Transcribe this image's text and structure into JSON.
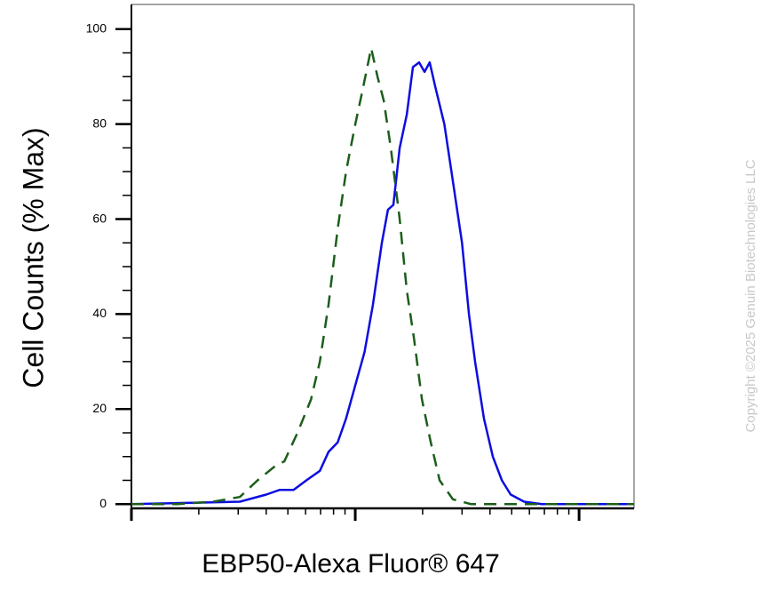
{
  "chart_data": {
    "type": "line",
    "xlabel": "EBP50-Alexa Fluor® 647",
    "ylabel": "Cell Counts (% Max)",
    "copyright": "Copyright ©2025 Genuin Biotechnologies LLC",
    "xscale": "log",
    "xlim": [
      100,
      17600
    ],
    "xticks": [
      100,
      1000,
      10000
    ],
    "xminorticks": [
      200,
      300,
      400,
      500,
      600,
      700,
      800,
      900,
      2000,
      3000,
      4000,
      5000,
      6000,
      7000,
      8000,
      9000
    ],
    "ylim": [
      -0.9,
      105.2
    ],
    "yticks": [
      0,
      20,
      40,
      60,
      80,
      100
    ],
    "yminorticks": [
      5,
      10,
      15,
      25,
      30,
      35,
      45,
      50,
      55,
      65,
      70,
      75,
      85,
      90,
      95
    ],
    "series": [
      {
        "color": "#0d0de0",
        "dash": false,
        "x": [
          100,
          305,
          400,
          460,
          530,
          605,
          695,
          760,
          835,
          910,
          1000,
          1100,
          1200,
          1315,
          1400,
          1480,
          1580,
          1700,
          1810,
          1930,
          2040,
          2150,
          2275,
          2500,
          2730,
          3000,
          3220,
          3430,
          3760,
          4120,
          4520,
          4950,
          5680,
          6810,
          17600
        ],
        "values": [
          0,
          0.5,
          2,
          3,
          3,
          5,
          7,
          11,
          13,
          18,
          25,
          32,
          42,
          55,
          62,
          63,
          75,
          82,
          92,
          93,
          91,
          93,
          88,
          80,
          68,
          55,
          40,
          30,
          18,
          10,
          5,
          2,
          0.5,
          0,
          0
        ]
      },
      {
        "color": "#1b5e1b",
        "dash": true,
        "x": [
          100,
          161,
          232,
          305,
          366,
          439,
          482,
          552,
          634,
          695,
          760,
          835,
          910,
          1000,
          1076,
          1178,
          1257,
          1340,
          1442,
          1580,
          1700,
          1828,
          1986,
          2174,
          2383,
          2730,
          3281,
          17600
        ],
        "values": [
          0,
          0,
          0.5,
          1.5,
          5,
          8,
          9,
          15,
          22,
          30,
          42,
          58,
          70,
          80,
          87,
          96,
          90,
          85,
          75,
          60,
          45,
          35,
          22,
          13,
          5,
          1,
          0,
          0
        ]
      }
    ]
  }
}
